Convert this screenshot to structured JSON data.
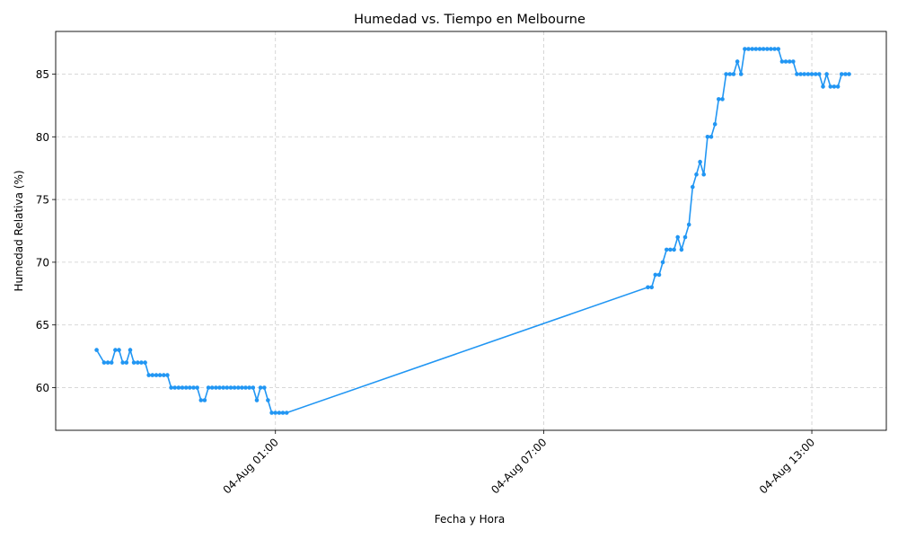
{
  "chart_data": {
    "type": "line",
    "title": "Humedad vs. Tiempo en Melbourne",
    "xlabel": "Fecha y Hora",
    "ylabel": "Humedad Relativa (%)",
    "x_axis_type": "datetime",
    "xlim": [
      "2024-08-03T20:05",
      "2024-08-04T14:40"
    ],
    "ylim": [
      56.6,
      88.4
    ],
    "xticks": [
      {
        "value": "2024-08-04T01:00",
        "label": "04-Aug 01:00"
      },
      {
        "value": "2024-08-04T07:00",
        "label": "04-Aug 07:00"
      },
      {
        "value": "2024-08-04T13:00",
        "label": "04-Aug 13:00"
      }
    ],
    "yticks": [
      60,
      65,
      70,
      75,
      80,
      85
    ],
    "grid": true,
    "grid_style": "dashed",
    "line_color": "#2196f3",
    "marker": "circle",
    "series": [
      {
        "x": [
          "2024-08-03T21:00",
          "2024-08-03T21:10",
          "2024-08-03T21:15",
          "2024-08-03T21:20",
          "2024-08-03T21:25",
          "2024-08-03T21:30",
          "2024-08-03T21:35",
          "2024-08-03T21:40",
          "2024-08-03T21:45",
          "2024-08-03T21:50",
          "2024-08-03T21:55",
          "2024-08-03T22:00",
          "2024-08-03T22:05",
          "2024-08-03T22:10",
          "2024-08-03T22:15",
          "2024-08-03T22:20",
          "2024-08-03T22:25",
          "2024-08-03T22:30",
          "2024-08-03T22:35",
          "2024-08-03T22:40",
          "2024-08-03T22:45",
          "2024-08-03T22:50",
          "2024-08-03T22:55",
          "2024-08-03T23:00",
          "2024-08-03T23:05",
          "2024-08-03T23:10",
          "2024-08-03T23:15",
          "2024-08-03T23:20",
          "2024-08-03T23:25",
          "2024-08-03T23:30",
          "2024-08-03T23:35",
          "2024-08-03T23:40",
          "2024-08-03T23:45",
          "2024-08-03T23:50",
          "2024-08-03T23:55",
          "2024-08-04T00:00",
          "2024-08-04T00:05",
          "2024-08-04T00:10",
          "2024-08-04T00:15",
          "2024-08-04T00:20",
          "2024-08-04T00:25",
          "2024-08-04T00:30",
          "2024-08-04T00:35",
          "2024-08-04T00:40",
          "2024-08-04T00:45",
          "2024-08-04T00:50",
          "2024-08-04T00:55",
          "2024-08-04T01:00",
          "2024-08-04T01:05",
          "2024-08-04T01:10",
          "2024-08-04T01:15",
          "2024-08-04T09:20",
          "2024-08-04T09:25",
          "2024-08-04T09:30",
          "2024-08-04T09:35",
          "2024-08-04T09:40",
          "2024-08-04T09:45",
          "2024-08-04T09:50",
          "2024-08-04T09:55",
          "2024-08-04T10:00",
          "2024-08-04T10:05",
          "2024-08-04T10:10",
          "2024-08-04T10:15",
          "2024-08-04T10:20",
          "2024-08-04T10:25",
          "2024-08-04T10:30",
          "2024-08-04T10:35",
          "2024-08-04T10:40",
          "2024-08-04T10:45",
          "2024-08-04T10:50",
          "2024-08-04T10:55",
          "2024-08-04T11:00",
          "2024-08-04T11:05",
          "2024-08-04T11:10",
          "2024-08-04T11:15",
          "2024-08-04T11:20",
          "2024-08-04T11:25",
          "2024-08-04T11:30",
          "2024-08-04T11:35",
          "2024-08-04T11:40",
          "2024-08-04T11:45",
          "2024-08-04T11:50",
          "2024-08-04T11:55",
          "2024-08-04T12:00",
          "2024-08-04T12:05",
          "2024-08-04T12:10",
          "2024-08-04T12:15",
          "2024-08-04T12:20",
          "2024-08-04T12:25",
          "2024-08-04T12:30",
          "2024-08-04T12:35",
          "2024-08-04T12:40",
          "2024-08-04T12:45",
          "2024-08-04T12:50",
          "2024-08-04T12:55",
          "2024-08-04T13:00",
          "2024-08-04T13:05",
          "2024-08-04T13:10",
          "2024-08-04T13:15",
          "2024-08-04T13:20",
          "2024-08-04T13:25",
          "2024-08-04T13:30",
          "2024-08-04T13:35",
          "2024-08-04T13:40",
          "2024-08-04T13:45",
          "2024-08-04T13:50"
        ],
        "y": [
          63,
          62,
          62,
          62,
          63,
          63,
          62,
          62,
          63,
          62,
          62,
          62,
          62,
          61,
          61,
          61,
          61,
          61,
          61,
          60,
          60,
          60,
          60,
          60,
          60,
          60,
          60,
          59,
          59,
          60,
          60,
          60,
          60,
          60,
          60,
          60,
          60,
          60,
          60,
          60,
          60,
          60,
          59,
          60,
          60,
          59,
          58,
          58,
          58,
          58,
          58,
          68,
          68,
          69,
          69,
          70,
          71,
          71,
          71,
          72,
          71,
          72,
          73,
          76,
          77,
          78,
          77,
          80,
          80,
          81,
          83,
          83,
          85,
          85,
          85,
          86,
          85,
          87,
          87,
          87,
          87,
          87,
          87,
          87,
          87,
          87,
          87,
          86,
          86,
          86,
          86,
          85,
          85,
          85,
          85,
          85,
          85,
          85,
          84,
          85,
          84,
          84,
          84,
          85,
          85,
          85
        ]
      }
    ]
  }
}
